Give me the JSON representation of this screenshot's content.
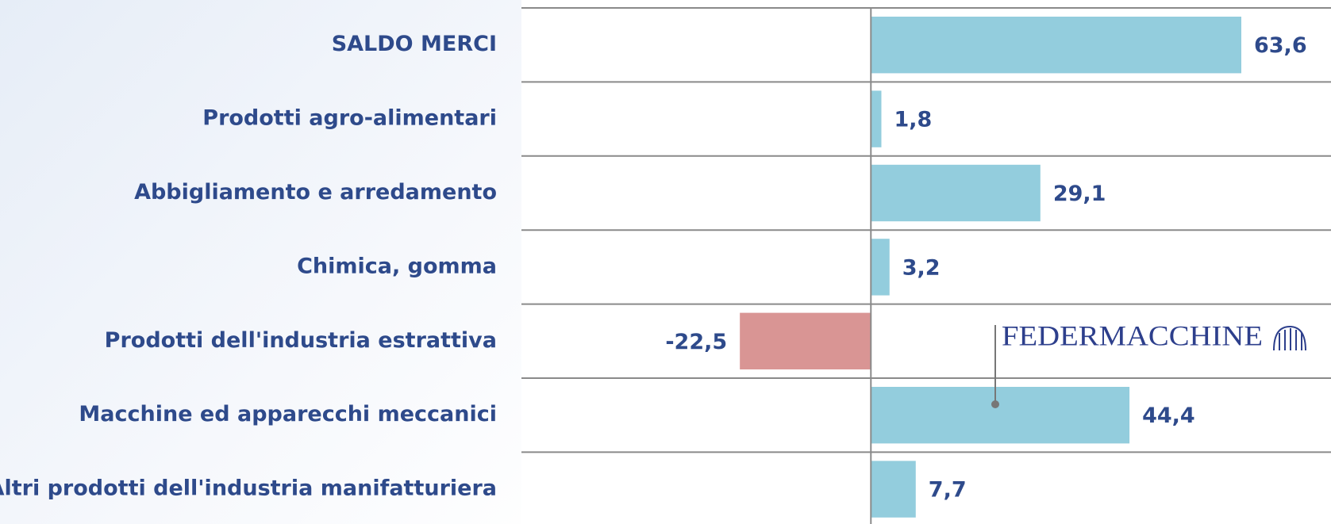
{
  "chart_data": {
    "type": "hbar",
    "categories": [
      "SALDO MERCI",
      "Prodotti agro-alimentari",
      "Abbigliamento e arredamento",
      "Chimica, gomma",
      "Prodotti dell'industria estrattiva",
      "Macchine ed apparecchi meccanici ",
      "Altri prodotti dell'industria manifatturiera"
    ],
    "values": [
      63.6,
      1.8,
      29.1,
      3.2,
      -22.5,
      44.4,
      7.7
    ],
    "value_labels": [
      "63,6",
      "1,8",
      "29,1",
      "3,2",
      "-22,5",
      "44,4",
      "7,7"
    ],
    "colors": [
      "#93cddd",
      "#93cddd",
      "#93cddd",
      "#93cddd",
      "#d99594",
      "#93cddd",
      "#93cddd"
    ],
    "xlim": [
      -60,
      79
    ],
    "annotation": "FEDERMACCHINE"
  }
}
